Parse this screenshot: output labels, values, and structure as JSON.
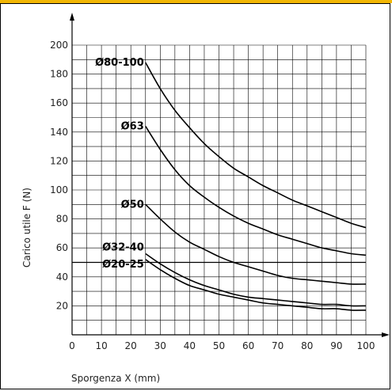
{
  "chart_data": {
    "type": "line",
    "title": "",
    "xlabel": "Sporgenza X (mm)",
    "ylabel": "Carico utile F (N)",
    "xlim": [
      0,
      100
    ],
    "ylim": [
      0,
      200
    ],
    "x_ticks": [
      0,
      10,
      20,
      30,
      40,
      50,
      60,
      70,
      80,
      90,
      100
    ],
    "y_ticks": [
      20,
      40,
      60,
      80,
      100,
      120,
      140,
      160,
      180,
      200
    ],
    "reference_line_y": 50,
    "grid": true,
    "series": [
      {
        "name": "Ø80-100",
        "x": [
          25,
          30,
          35,
          40,
          45,
          50,
          55,
          60,
          65,
          70,
          75,
          80,
          85,
          90,
          95,
          100
        ],
        "values": [
          188,
          170,
          155,
          143,
          132,
          123,
          115,
          109,
          103,
          98,
          93,
          89,
          85,
          81,
          77,
          74
        ]
      },
      {
        "name": "Ø63",
        "x": [
          25,
          30,
          35,
          40,
          45,
          50,
          55,
          60,
          65,
          70,
          75,
          80,
          85,
          90,
          95,
          100
        ],
        "values": [
          144,
          128,
          114,
          103,
          95,
          88,
          82,
          77,
          73,
          69,
          66,
          63,
          60,
          58,
          56,
          55
        ]
      },
      {
        "name": "Ø50",
        "x": [
          25,
          30,
          35,
          40,
          45,
          50,
          55,
          60,
          65,
          70,
          75,
          80,
          85,
          90,
          95,
          100
        ],
        "values": [
          90,
          80,
          71,
          64,
          59,
          54,
          50,
          47,
          44,
          41,
          39,
          38,
          37,
          36,
          35,
          35
        ]
      },
      {
        "name": "Ø32-40",
        "x": [
          25,
          30,
          35,
          40,
          45,
          50,
          55,
          60,
          65,
          70,
          75,
          80,
          85,
          90,
          95,
          100
        ],
        "values": [
          56,
          49,
          43,
          38,
          34,
          31,
          28,
          26,
          25,
          24,
          23,
          22,
          21,
          21,
          20,
          20
        ]
      },
      {
        "name": "Ø20-25",
        "x": [
          25,
          30,
          35,
          40,
          45,
          50,
          55,
          60,
          65,
          70,
          75,
          80,
          85,
          90,
          95,
          100
        ],
        "values": [
          52,
          45,
          39,
          34,
          31,
          28,
          26,
          24,
          22,
          21,
          20,
          19,
          18,
          18,
          17,
          17
        ]
      }
    ]
  }
}
